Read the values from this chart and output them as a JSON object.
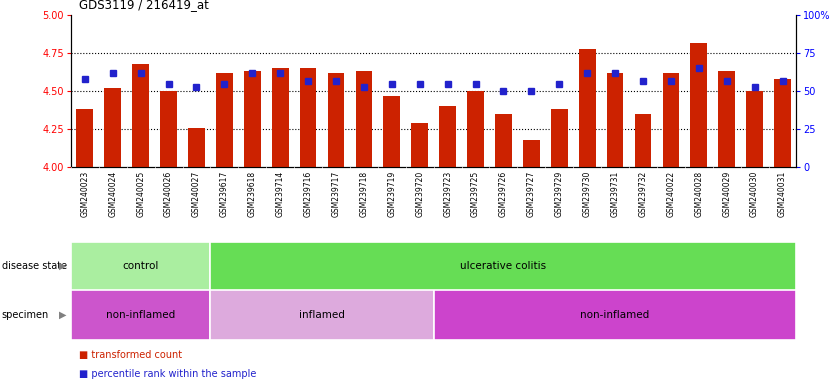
{
  "title": "GDS3119 / 216419_at",
  "categories": [
    "GSM240023",
    "GSM240024",
    "GSM240025",
    "GSM240026",
    "GSM240027",
    "GSM239617",
    "GSM239618",
    "GSM239714",
    "GSM239716",
    "GSM239717",
    "GSM239718",
    "GSM239719",
    "GSM239720",
    "GSM239723",
    "GSM239725",
    "GSM239726",
    "GSM239727",
    "GSM239729",
    "GSM239730",
    "GSM239731",
    "GSM239732",
    "GSM240022",
    "GSM240028",
    "GSM240029",
    "GSM240030",
    "GSM240031"
  ],
  "bar_values": [
    4.38,
    4.52,
    4.68,
    4.5,
    4.26,
    4.62,
    4.63,
    4.65,
    4.65,
    4.62,
    4.63,
    4.47,
    4.29,
    4.4,
    4.5,
    4.35,
    4.18,
    4.38,
    4.78,
    4.62,
    4.35,
    4.62,
    4.82,
    4.63,
    4.5,
    4.58
  ],
  "percentile_values": [
    58,
    62,
    62,
    55,
    53,
    55,
    62,
    62,
    57,
    57,
    53,
    55,
    55,
    55,
    55,
    50,
    50,
    55,
    62,
    62,
    57,
    57,
    65,
    57,
    53,
    57
  ],
  "ylim_left": [
    4.0,
    5.0
  ],
  "ylim_right": [
    0,
    100
  ],
  "yticks_left": [
    4.0,
    4.25,
    4.5,
    4.75,
    5.0
  ],
  "yticks_right": [
    0,
    25,
    50,
    75,
    100
  ],
  "bar_color": "#cc2200",
  "percentile_color": "#2222cc",
  "grid_color": "#000000",
  "plot_bg_color": "#ffffff",
  "xtick_bg_color": "#d8d8d8",
  "disease_state_groups": [
    {
      "label": "control",
      "start": 0,
      "end": 5,
      "color": "#aaeea0"
    },
    {
      "label": "ulcerative colitis",
      "start": 5,
      "end": 26,
      "color": "#66dd55"
    }
  ],
  "specimen_groups": [
    {
      "label": "non-inflamed",
      "start": 0,
      "end": 5,
      "color": "#cc55cc"
    },
    {
      "label": "inflamed",
      "start": 5,
      "end": 13,
      "color": "#ddaadd"
    },
    {
      "label": "non-inflamed",
      "start": 13,
      "end": 26,
      "color": "#cc44cc"
    }
  ],
  "legend_items": [
    {
      "label": "transformed count",
      "color": "#cc2200"
    },
    {
      "label": "percentile rank within the sample",
      "color": "#2222cc"
    }
  ],
  "fig_width": 8.34,
  "fig_height": 3.84,
  "dpi": 100
}
